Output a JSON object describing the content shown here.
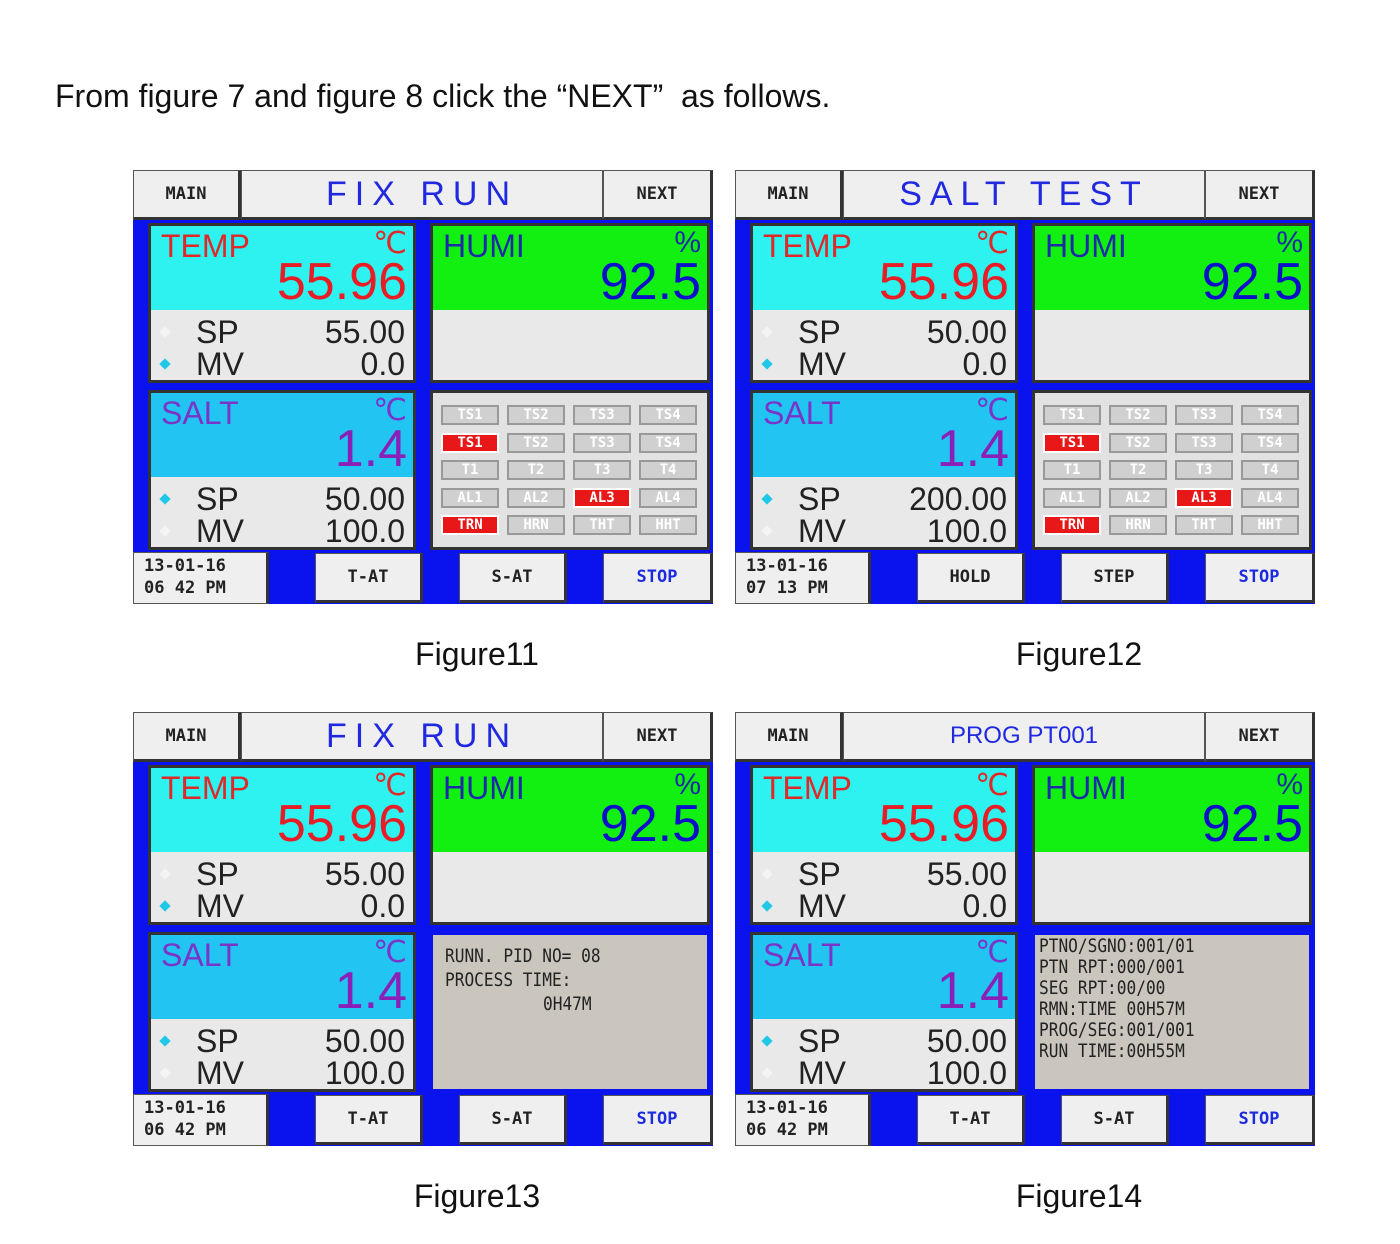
{
  "intro": "From figure 7 and figure 8 click the “NEXT”  as follows.",
  "figures": [
    {
      "header": {
        "left": "MAIN",
        "title": "FIX RUN",
        "right": "NEXT"
      },
      "temp": {
        "label": "TEMP",
        "unit": "℃",
        "value": "55.96",
        "sp_label": "SP",
        "sp": "55.00",
        "mv_label": "MV",
        "mv": "0.0"
      },
      "humi": {
        "label": "HUMI",
        "unit": "%",
        "value": "92.5"
      },
      "salt": {
        "label": "SALT",
        "unit": "℃",
        "value": "1.4",
        "sp_label": "SP",
        "sp": "50.00",
        "mv_label": "MV",
        "mv": "100.0"
      },
      "status": [
        {
          "label": "TS1",
          "alarm": false
        },
        {
          "label": "TS2",
          "alarm": false
        },
        {
          "label": "TS3",
          "alarm": false
        },
        {
          "label": "TS4",
          "alarm": false
        },
        {
          "label": "TS1",
          "alarm": true
        },
        {
          "label": "TS2",
          "alarm": false
        },
        {
          "label": "TS3",
          "alarm": false
        },
        {
          "label": "TS4",
          "alarm": false
        },
        {
          "label": "T1",
          "alarm": false
        },
        {
          "label": "T2",
          "alarm": false
        },
        {
          "label": "T3",
          "alarm": false
        },
        {
          "label": "T4",
          "alarm": false
        },
        {
          "label": "AL1",
          "alarm": false
        },
        {
          "label": "AL2",
          "alarm": false
        },
        {
          "label": "AL3",
          "alarm": true
        },
        {
          "label": "AL4",
          "alarm": false
        },
        {
          "label": "TRN",
          "alarm": true
        },
        {
          "label": "HRN",
          "alarm": false
        },
        {
          "label": "THT",
          "alarm": false
        },
        {
          "label": "HHT",
          "alarm": false
        }
      ],
      "footer": {
        "date": "13-01-16",
        "time": "06 42 PM",
        "buttons": [
          "T-AT",
          "S-AT",
          "STOP"
        ]
      },
      "caption": "Figure11"
    },
    {
      "header": {
        "left": "MAIN",
        "title": "SALT TEST",
        "right": "NEXT"
      },
      "temp": {
        "label": "TEMP",
        "unit": "℃",
        "value": "55.96",
        "sp_label": "SP",
        "sp": "50.00",
        "mv_label": "MV",
        "mv": "0.0"
      },
      "humi": {
        "label": "HUMI",
        "unit": "%",
        "value": "92.5"
      },
      "salt": {
        "label": "SALT",
        "unit": "℃",
        "value": "1.4",
        "sp_label": "SP",
        "sp": "200.00",
        "mv_label": "MV",
        "mv": "100.0"
      },
      "status": [
        {
          "label": "TS1",
          "alarm": false
        },
        {
          "label": "TS2",
          "alarm": false
        },
        {
          "label": "TS3",
          "alarm": false
        },
        {
          "label": "TS4",
          "alarm": false
        },
        {
          "label": "TS1",
          "alarm": true
        },
        {
          "label": "TS2",
          "alarm": false
        },
        {
          "label": "TS3",
          "alarm": false
        },
        {
          "label": "TS4",
          "alarm": false
        },
        {
          "label": "T1",
          "alarm": false
        },
        {
          "label": "T2",
          "alarm": false
        },
        {
          "label": "T3",
          "alarm": false
        },
        {
          "label": "T4",
          "alarm": false
        },
        {
          "label": "AL1",
          "alarm": false
        },
        {
          "label": "AL2",
          "alarm": false
        },
        {
          "label": "AL3",
          "alarm": true
        },
        {
          "label": "AL4",
          "alarm": false
        },
        {
          "label": "TRN",
          "alarm": true
        },
        {
          "label": "HRN",
          "alarm": false
        },
        {
          "label": "THT",
          "alarm": false
        },
        {
          "label": "HHT",
          "alarm": false
        }
      ],
      "footer": {
        "date": "13-01-16",
        "time": "07 13 PM",
        "buttons": [
          "HOLD",
          "STEP",
          "STOP"
        ]
      },
      "caption": "Figure12"
    },
    {
      "header": {
        "left": "MAIN",
        "title": "FIX RUN",
        "right": "NEXT"
      },
      "temp": {
        "label": "TEMP",
        "unit": "℃",
        "value": "55.96",
        "sp_label": "SP",
        "sp": "55.00",
        "mv_label": "MV",
        "mv": "0.0"
      },
      "humi": {
        "label": "HUMI",
        "unit": "%",
        "value": "92.5"
      },
      "salt": {
        "label": "SALT",
        "unit": "℃",
        "value": "1.4",
        "sp_label": "SP",
        "sp": "50.00",
        "mv_label": "MV",
        "mv": "100.0"
      },
      "info": [
        "RUNN. PID NO= 08",
        "PROCESS TIME:",
        "0H47M"
      ],
      "footer": {
        "date": "13-01-16",
        "time": "06 42 PM",
        "buttons": [
          "T-AT",
          "S-AT",
          "STOP"
        ]
      },
      "caption": "Figure13"
    },
    {
      "header": {
        "left": "MAIN",
        "title": "PROG PT001",
        "right": "NEXT"
      },
      "temp": {
        "label": "TEMP",
        "unit": "℃",
        "value": "55.96",
        "sp_label": "SP",
        "sp": "55.00",
        "mv_label": "MV",
        "mv": "0.0"
      },
      "humi": {
        "label": "HUMI",
        "unit": "%",
        "value": "92.5"
      },
      "salt": {
        "label": "SALT",
        "unit": "℃",
        "value": "1.4",
        "sp_label": "SP",
        "sp": "50.00",
        "mv_label": "MV",
        "mv": "100.0"
      },
      "info": [
        "PTNO/SGNO:001/01",
        "PTN RPT:000/001",
        "SEG RPT:00/00",
        "RMN:TIME 00H57M",
        "PROG/SEG:001/001",
        "RUN TIME:00H55M"
      ],
      "footer": {
        "date": "13-01-16",
        "time": "06 42 PM",
        "buttons": [
          "T-AT",
          "S-AT",
          "STOP"
        ]
      },
      "caption": "Figure14"
    }
  ]
}
